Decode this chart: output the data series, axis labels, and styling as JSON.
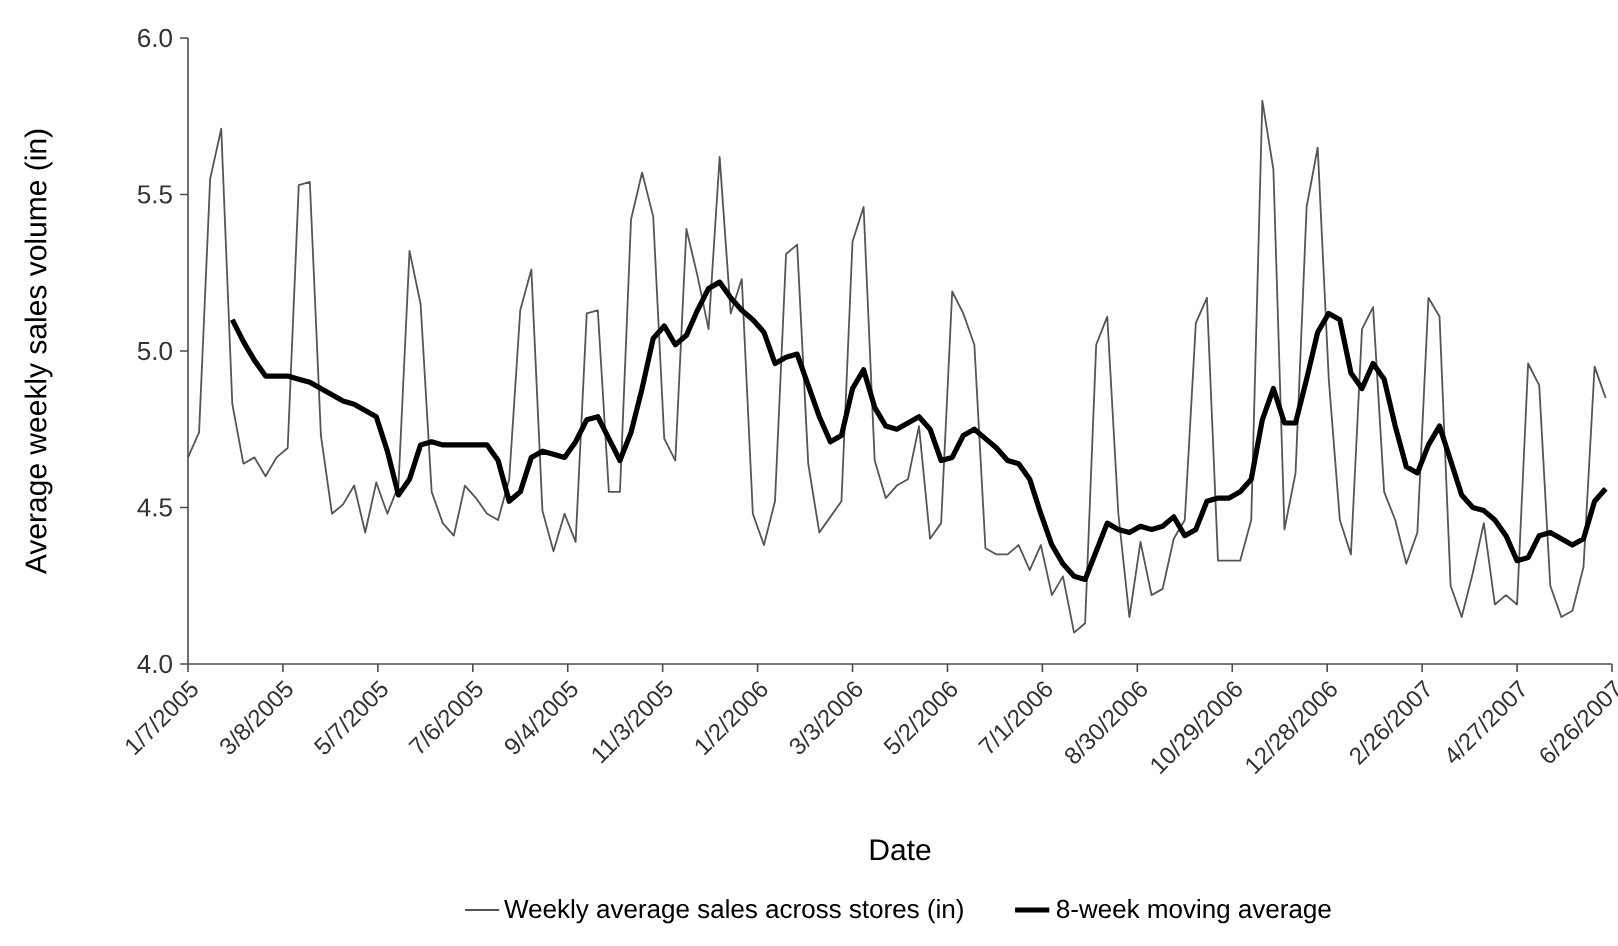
{
  "chart_data": {
    "type": "line",
    "xlabel": "Date",
    "ylabel": "Average weekly sales volume (in)",
    "x": [
      "2005-01-07",
      "2005-01-14",
      "2005-01-21",
      "2005-01-28",
      "2005-02-04",
      "2005-02-11",
      "2005-02-18",
      "2005-02-25",
      "2005-03-04",
      "2005-03-11",
      "2005-03-18",
      "2005-03-25",
      "2005-04-01",
      "2005-04-08",
      "2005-04-15",
      "2005-04-22",
      "2005-04-29",
      "2005-05-06",
      "2005-05-13",
      "2005-05-20",
      "2005-05-27",
      "2005-06-03",
      "2005-06-10",
      "2005-06-17",
      "2005-06-24",
      "2005-07-01",
      "2005-07-08",
      "2005-07-15",
      "2005-07-22",
      "2005-07-29",
      "2005-08-05",
      "2005-08-12",
      "2005-08-19",
      "2005-08-26",
      "2005-09-02",
      "2005-09-09",
      "2005-09-16",
      "2005-09-23",
      "2005-09-30",
      "2005-10-07",
      "2005-10-14",
      "2005-10-21",
      "2005-10-28",
      "2005-11-04",
      "2005-11-11",
      "2005-11-18",
      "2005-11-25",
      "2005-12-02",
      "2005-12-09",
      "2005-12-16",
      "2005-12-23",
      "2005-12-30",
      "2006-01-06",
      "2006-01-13",
      "2006-01-20",
      "2006-01-27",
      "2006-02-03",
      "2006-02-10",
      "2006-02-17",
      "2006-02-24",
      "2006-03-03",
      "2006-03-10",
      "2006-03-17",
      "2006-03-24",
      "2006-03-31",
      "2006-04-07",
      "2006-04-14",
      "2006-04-21",
      "2006-04-28",
      "2006-05-05",
      "2006-05-12",
      "2006-05-19",
      "2006-05-26",
      "2006-06-02",
      "2006-06-09",
      "2006-06-16",
      "2006-06-23",
      "2006-06-30",
      "2006-07-07",
      "2006-07-14",
      "2006-07-21",
      "2006-07-28",
      "2006-08-04",
      "2006-08-11",
      "2006-08-18",
      "2006-08-25",
      "2006-09-01",
      "2006-09-08",
      "2006-09-15",
      "2006-09-22",
      "2006-09-29",
      "2006-10-06",
      "2006-10-13",
      "2006-10-20",
      "2006-10-27",
      "2006-11-03",
      "2006-11-10",
      "2006-11-17",
      "2006-11-24",
      "2006-12-01",
      "2006-12-08",
      "2006-12-15",
      "2006-12-22",
      "2006-12-29",
      "2007-01-05",
      "2007-01-12",
      "2007-01-19",
      "2007-01-26",
      "2007-02-02",
      "2007-02-09",
      "2007-02-16",
      "2007-02-23",
      "2007-03-02",
      "2007-03-09",
      "2007-03-16",
      "2007-03-23",
      "2007-03-30",
      "2007-04-06",
      "2007-04-13",
      "2007-04-20",
      "2007-04-27",
      "2007-05-04",
      "2007-05-11",
      "2007-05-18",
      "2007-05-25",
      "2007-06-01",
      "2007-06-08",
      "2007-06-15",
      "2007-06-22"
    ],
    "series": [
      {
        "name": "Weekly average sales across stores (in)",
        "color": "#555555",
        "values": [
          4.66,
          4.74,
          5.55,
          5.71,
          4.83,
          4.64,
          4.66,
          4.6,
          4.66,
          4.69,
          5.53,
          5.54,
          4.73,
          4.48,
          4.51,
          4.57,
          4.42,
          4.58,
          4.48,
          4.57,
          5.32,
          5.15,
          4.55,
          4.45,
          4.41,
          4.57,
          4.53,
          4.48,
          4.46,
          4.59,
          5.13,
          5.26,
          4.49,
          4.36,
          4.48,
          4.39,
          5.12,
          5.13,
          4.55,
          4.55,
          5.42,
          5.57,
          5.43,
          4.72,
          4.65,
          5.39,
          5.24,
          5.07,
          5.62,
          5.12,
          5.23,
          4.48,
          4.38,
          4.52,
          5.31,
          5.34,
          4.64,
          4.42,
          4.47,
          4.52,
          5.35,
          5.46,
          4.65,
          4.53,
          4.57,
          4.59,
          4.76,
          4.4,
          4.45,
          5.19,
          5.12,
          5.02,
          4.37,
          4.35,
          4.35,
          4.38,
          4.3,
          4.38,
          4.22,
          4.28,
          4.1,
          4.13,
          5.02,
          5.11,
          4.48,
          4.15,
          4.39,
          4.22,
          4.24,
          4.4,
          4.46,
          5.09,
          5.17,
          4.33,
          4.33,
          4.33,
          4.46,
          5.8,
          5.58,
          4.43,
          4.61,
          5.46,
          5.65,
          4.91,
          4.46,
          4.35,
          5.07,
          5.14,
          4.55,
          4.46,
          4.32,
          4.42,
          5.17,
          5.11,
          4.25,
          4.15,
          4.29,
          4.45,
          4.19,
          4.22,
          4.19,
          4.96,
          4.89,
          4.25,
          4.15,
          4.17,
          4.31,
          4.95,
          4.85
        ]
      },
      {
        "name": "8-week moving average",
        "color": "#000000",
        "values": [
          null,
          null,
          null,
          null,
          5.1,
          5.03,
          4.97,
          4.92,
          4.92,
          4.92,
          4.91,
          4.9,
          4.88,
          4.86,
          4.84,
          4.83,
          4.81,
          4.79,
          4.68,
          4.54,
          4.59,
          4.7,
          4.71,
          4.7,
          4.7,
          4.7,
          4.7,
          4.7,
          4.65,
          4.52,
          4.55,
          4.66,
          4.68,
          4.67,
          4.66,
          4.71,
          4.78,
          4.79,
          4.72,
          4.65,
          4.74,
          4.88,
          5.04,
          5.08,
          5.02,
          5.05,
          5.13,
          5.2,
          5.22,
          5.17,
          5.13,
          5.1,
          5.06,
          4.96,
          4.98,
          4.99,
          4.89,
          4.79,
          4.71,
          4.73,
          4.88,
          4.94,
          4.82,
          4.76,
          4.75,
          4.77,
          4.79,
          4.75,
          4.65,
          4.66,
          4.73,
          4.75,
          4.72,
          4.69,
          4.65,
          4.64,
          4.59,
          4.48,
          4.38,
          4.32,
          4.28,
          4.27,
          4.36,
          4.45,
          4.43,
          4.42,
          4.44,
          4.43,
          4.44,
          4.47,
          4.41,
          4.43,
          4.52,
          4.53,
          4.53,
          4.55,
          4.59,
          4.78,
          4.88,
          4.77,
          4.77,
          4.91,
          5.06,
          5.12,
          5.1,
          4.93,
          4.88,
          4.96,
          4.91,
          4.76,
          4.63,
          4.61,
          4.7,
          4.76,
          4.65,
          4.54,
          4.5,
          4.49,
          4.46,
          4.41,
          4.33,
          4.34,
          4.41,
          4.42,
          4.4,
          4.38,
          4.4,
          4.52,
          4.56
        ]
      }
    ],
    "xlim": [
      "2005-01-07",
      "2007-06-26"
    ],
    "xticks": [
      {
        "value": "2005-01-07",
        "label": "1/7/2005"
      },
      {
        "value": "2005-03-08",
        "label": "3/8/2005"
      },
      {
        "value": "2005-05-07",
        "label": "5/7/2005"
      },
      {
        "value": "2005-07-06",
        "label": "7/6/2005"
      },
      {
        "value": "2005-09-04",
        "label": "9/4/2005"
      },
      {
        "value": "2005-11-03",
        "label": "11/3/2005"
      },
      {
        "value": "2006-01-02",
        "label": "1/2/2006"
      },
      {
        "value": "2006-03-03",
        "label": "3/3/2006"
      },
      {
        "value": "2006-05-02",
        "label": "5/2/2006"
      },
      {
        "value": "2006-07-01",
        "label": "7/1/2006"
      },
      {
        "value": "2006-08-30",
        "label": "8/30/2006"
      },
      {
        "value": "2006-10-29",
        "label": "10/29/2006"
      },
      {
        "value": "2006-12-28",
        "label": "12/28/2006"
      },
      {
        "value": "2007-02-26",
        "label": "2/26/2007"
      },
      {
        "value": "2007-04-27",
        "label": "4/27/2007"
      },
      {
        "value": "2007-06-26",
        "label": "6/26/2007"
      }
    ],
    "ylim": [
      4.0,
      6.0
    ],
    "yticks": [
      {
        "value": 4.0,
        "label": "4.0"
      },
      {
        "value": 4.5,
        "label": "4.5"
      },
      {
        "value": 5.0,
        "label": "5.0"
      },
      {
        "value": 5.5,
        "label": "5.5"
      },
      {
        "value": 6.0,
        "label": "6.0"
      }
    ],
    "grid": false,
    "legend": "bottom",
    "marker": "none",
    "line_style": "solid"
  }
}
